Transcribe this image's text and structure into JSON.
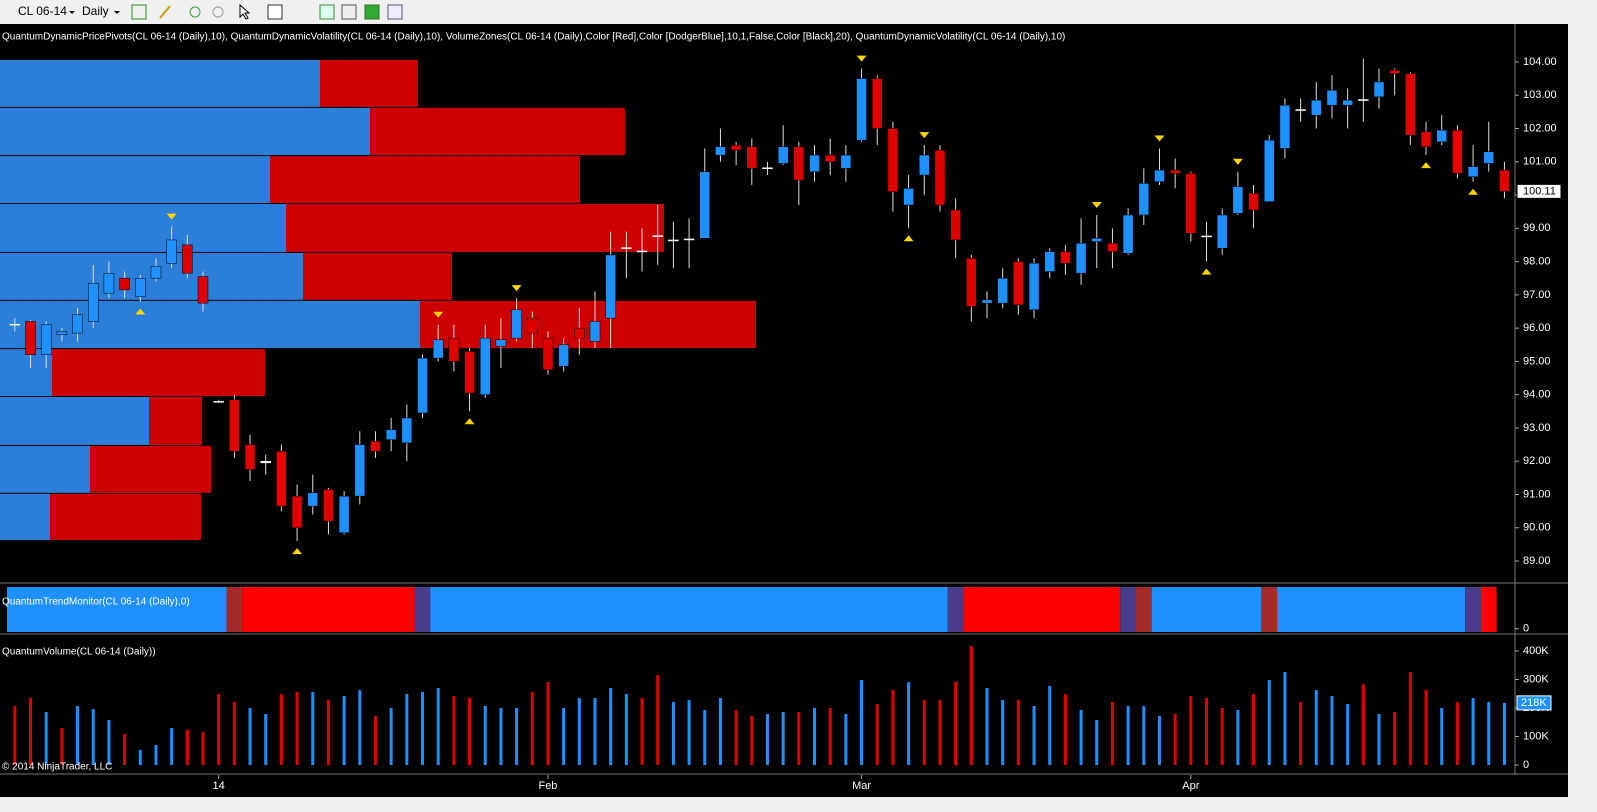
{
  "toolbar": {
    "instrument": "CL 06-14",
    "period": "Daily"
  },
  "copyright": "© 2014 NinjaTrader, LLC",
  "chart_data": [
    {
      "type": "candlestick",
      "title": "QuantumDynamicPricePivots(CL 06-14 (Daily),10), QuantumDynamicVolatility(CL 06-14 (Daily),10), VolumeZones(CL 06-14 (Daily),Color [Red],Color [DodgerBlue],10,1,False,Color [Black],20), QuantumDynamicVolatility(CL 06-14 (Daily),10)",
      "categories": [
        null,
        null,
        null,
        null,
        null,
        null,
        null,
        null,
        null,
        null,
        null,
        null,
        null,
        "14",
        null,
        null,
        null,
        null,
        null,
        null,
        null,
        null,
        null,
        null,
        null,
        null,
        null,
        null,
        null,
        null,
        null,
        null,
        null,
        null,
        "Feb",
        null,
        null,
        null,
        null,
        null,
        null,
        null,
        null,
        null,
        null,
        null,
        null,
        null,
        null,
        null,
        null,
        null,
        null,
        null,
        "Mar",
        null,
        null,
        null,
        null,
        null,
        null,
        null,
        null,
        null,
        null,
        null,
        null,
        null,
        null,
        null,
        null,
        null,
        null,
        null,
        null,
        "Apr",
        null,
        null,
        null,
        null,
        null,
        null,
        null,
        null,
        null,
        null,
        null,
        null,
        null,
        null,
        null,
        null,
        null,
        null,
        null,
        null
      ],
      "open": [
        96.1,
        96.2,
        95.2,
        95.8,
        95.85,
        96.2,
        97.05,
        97.5,
        96.95,
        97.5,
        97.95,
        98.5,
        97.55,
        93.8,
        93.85,
        92.5,
        92.0,
        92.3,
        90.95,
        90.65,
        91.15,
        89.85,
        90.95,
        92.6,
        92.65,
        92.55,
        93.45,
        95.1,
        95.7,
        95.3,
        94.0,
        95.45,
        95.7,
        96.3,
        95.7,
        94.85,
        96.0,
        95.6,
        96.3,
        98.4,
        98.3,
        98.75,
        98.65,
        98.65,
        98.7,
        101.2,
        101.5,
        101.45,
        100.8,
        100.95,
        101.45,
        100.7,
        101.2,
        100.8,
        101.65,
        103.5,
        102.0,
        99.7,
        100.6,
        101.35,
        99.55,
        98.1,
        96.75,
        96.75,
        98.0,
        96.55,
        97.7,
        98.3,
        97.65,
        98.6,
        98.55,
        98.25,
        99.4,
        100.4,
        100.75,
        100.65,
        98.75,
        98.4,
        99.45,
        100.05,
        99.8,
        101.4,
        102.55,
        102.4,
        102.7,
        102.7,
        102.85,
        102.95,
        103.75,
        103.65,
        101.9,
        101.6,
        101.95,
        100.55,
        100.95,
        100.75
      ],
      "high": [
        96.3,
        96.25,
        96.2,
        96.0,
        96.6,
        97.9,
        98.0,
        97.7,
        97.6,
        98.1,
        99.05,
        98.8,
        97.7,
        93.85,
        94.0,
        92.8,
        92.2,
        92.5,
        91.3,
        91.6,
        91.2,
        91.1,
        92.9,
        92.9,
        93.3,
        93.7,
        95.2,
        96.1,
        96.1,
        95.4,
        96.1,
        96.3,
        96.9,
        96.5,
        95.9,
        95.7,
        96.6,
        97.1,
        98.9,
        98.9,
        99.0,
        99.7,
        99.2,
        99.3,
        101.4,
        102.0,
        101.6,
        101.7,
        101.0,
        102.1,
        101.6,
        101.5,
        101.7,
        101.5,
        103.8,
        103.6,
        102.2,
        100.6,
        101.5,
        101.5,
        99.9,
        98.2,
        97.1,
        97.8,
        98.1,
        98.1,
        98.4,
        98.5,
        99.3,
        99.4,
        99.0,
        99.6,
        100.8,
        101.4,
        101.1,
        100.7,
        99.2,
        99.6,
        100.7,
        100.3,
        101.8,
        102.9,
        102.9,
        103.4,
        103.6,
        103.2,
        104.1,
        103.8,
        103.8,
        103.7,
        102.2,
        102.4,
        102.1,
        101.5,
        102.2,
        101.0
      ],
      "low": [
        95.9,
        94.8,
        94.8,
        95.6,
        95.6,
        96.0,
        96.9,
        96.9,
        96.8,
        97.4,
        97.8,
        97.5,
        96.5,
        93.75,
        92.1,
        91.4,
        91.6,
        90.5,
        89.6,
        90.4,
        89.8,
        89.8,
        90.7,
        92.1,
        92.3,
        92.0,
        93.3,
        95.0,
        94.7,
        93.5,
        93.9,
        94.8,
        95.6,
        95.4,
        94.6,
        94.7,
        95.2,
        95.4,
        95.4,
        97.5,
        97.7,
        97.9,
        97.8,
        97.8,
        98.7,
        101.0,
        100.9,
        100.3,
        100.6,
        100.9,
        99.7,
        100.4,
        100.6,
        100.4,
        101.6,
        101.5,
        99.5,
        99.0,
        100.0,
        99.5,
        98.1,
        96.2,
        96.3,
        96.6,
        96.4,
        96.3,
        97.5,
        97.6,
        97.3,
        97.8,
        97.8,
        98.2,
        99.1,
        100.3,
        100.2,
        98.6,
        98.0,
        98.2,
        99.4,
        99.0,
        99.8,
        101.1,
        102.2,
        102.0,
        102.3,
        102.0,
        102.2,
        102.6,
        103.0,
        101.5,
        101.2,
        101.5,
        100.5,
        100.4,
        100.7,
        99.9
      ],
      "close": [
        96.12,
        95.2,
        96.1,
        95.9,
        96.4,
        97.35,
        97.65,
        97.15,
        97.5,
        97.85,
        98.65,
        97.65,
        96.75,
        93.78,
        92.3,
        91.75,
        91.95,
        90.65,
        90.0,
        91.05,
        90.2,
        90.95,
        92.5,
        92.3,
        92.95,
        93.3,
        95.1,
        95.65,
        95.0,
        94.05,
        95.7,
        95.65,
        96.55,
        95.85,
        94.75,
        95.5,
        95.7,
        96.2,
        98.2,
        98.42,
        98.32,
        98.78,
        98.62,
        98.68,
        100.7,
        101.45,
        101.35,
        100.8,
        100.82,
        101.45,
        100.45,
        101.2,
        101.0,
        101.2,
        103.5,
        102.0,
        100.1,
        100.2,
        101.2,
        99.7,
        98.65,
        96.65,
        96.85,
        97.5,
        96.7,
        97.95,
        98.3,
        97.95,
        98.55,
        98.7,
        98.3,
        99.4,
        100.35,
        100.75,
        100.65,
        98.85,
        98.77,
        99.4,
        100.25,
        99.55,
        101.65,
        102.7,
        102.57,
        102.85,
        103.15,
        102.85,
        102.87,
        103.4,
        103.65,
        101.8,
        101.45,
        101.95,
        100.65,
        100.85,
        101.3,
        100.11
      ],
      "up_color": "#1e90ff",
      "down_color": "#e00000",
      "pivot_highs": [
        10,
        27,
        32,
        54,
        58,
        69,
        73,
        78
      ],
      "pivot_lows": [
        8,
        18,
        29,
        57,
        76,
        90,
        93
      ],
      "pivot_color": "#ffd700",
      "volume_zones": [
        {
          "high": 104.06,
          "low": 102.62,
          "up": 320,
          "down": 98
        },
        {
          "high": 102.62,
          "low": 101.17,
          "up": 370,
          "down": 255
        },
        {
          "high": 101.17,
          "low": 99.73,
          "up": 270,
          "down": 310
        },
        {
          "high": 99.73,
          "low": 98.26,
          "up": 286,
          "down": 378
        },
        {
          "high": 98.26,
          "low": 96.82,
          "up": 303,
          "down": 149
        },
        {
          "high": 96.82,
          "low": 95.37,
          "up": 420,
          "down": 336
        },
        {
          "high": 95.37,
          "low": 93.93,
          "up": 52,
          "down": 213
        },
        {
          "high": 93.93,
          "low": 92.46,
          "up": 149,
          "down": 53
        },
        {
          "high": 92.46,
          "low": 91.02,
          "up": 90,
          "down": 121
        },
        {
          "high": 91.02,
          "low": 89.6,
          "up": 50,
          "down": 151
        }
      ],
      "zone_up_color": "#2b7fd8",
      "zone_down_color": "#cc0000",
      "ylim": [
        88.37,
        105.02
      ],
      "yticks": [
        {
          "value": 89,
          "label": "89.00"
        },
        {
          "value": 90,
          "label": "90.00"
        },
        {
          "value": 91,
          "label": "91.00"
        },
        {
          "value": 92,
          "label": "92.00"
        },
        {
          "value": 93,
          "label": "93.00"
        },
        {
          "value": 94,
          "label": "94.00"
        },
        {
          "value": 95,
          "label": "95.00"
        },
        {
          "value": 96,
          "label": "96.00"
        },
        {
          "value": 97,
          "label": "97.00"
        },
        {
          "value": 98,
          "label": "98.00"
        },
        {
          "value": 99,
          "label": "99.00"
        },
        {
          "value": 100,
          "label": "100.00"
        },
        {
          "value": 101,
          "label": "101.00"
        },
        {
          "value": 102,
          "label": "102.00"
        },
        {
          "value": 103,
          "label": "103.00"
        },
        {
          "value": 104,
          "label": "104.00"
        }
      ]
    },
    {
      "type": "band",
      "title": "QuantumTrendMonitor(CL 06-14 (Daily),0)",
      "segments": [
        {
          "from": 0,
          "to": 13,
          "color": "#1e90ff"
        },
        {
          "from": 14,
          "to": 14,
          "color": "#a52a2a"
        },
        {
          "from": 15,
          "to": 25,
          "color": "#ff0000"
        },
        {
          "from": 26,
          "to": 26,
          "color": "#483d8b"
        },
        {
          "from": 27,
          "to": 59,
          "color": "#1e90ff"
        },
        {
          "from": 60,
          "to": 60,
          "color": "#483d8b"
        },
        {
          "from": 61,
          "to": 70,
          "color": "#ff0000"
        },
        {
          "from": 71,
          "to": 71,
          "color": "#483d8b"
        },
        {
          "from": 72,
          "to": 72,
          "color": "#a52a2a"
        },
        {
          "from": 73,
          "to": 79,
          "color": "#1e90ff"
        },
        {
          "from": 80,
          "to": 80,
          "color": "#a52a2a"
        },
        {
          "from": 81,
          "to": 92,
          "color": "#1e90ff"
        },
        {
          "from": 93,
          "to": 93,
          "color": "#483d8b"
        },
        {
          "from": 94,
          "to": 94,
          "color": "#ff0000"
        }
      ],
      "ylim": [
        -0.1,
        1
      ],
      "yticks": [
        0
      ]
    },
    {
      "type": "volume",
      "title": "QuantumVolume(CL 06-14 (Daily))",
      "values": [
        207000,
        235000,
        186000,
        130000,
        207000,
        196000,
        158000,
        109000,
        53000,
        70000,
        130000,
        123000,
        116000,
        249000,
        221000,
        200000,
        179000,
        249000,
        256000,
        256000,
        228000,
        242000,
        263000,
        172000,
        200000,
        249000,
        256000,
        270000,
        242000,
        235000,
        207000,
        200000,
        200000,
        256000,
        291000,
        200000,
        235000,
        235000,
        270000,
        249000,
        235000,
        316000,
        221000,
        228000,
        193000,
        235000,
        193000,
        172000,
        179000,
        186000,
        186000,
        200000,
        200000,
        179000,
        298000,
        214000,
        263000,
        291000,
        228000,
        228000,
        291000,
        418000,
        270000,
        228000,
        228000,
        207000,
        277000,
        249000,
        193000,
        158000,
        221000,
        207000,
        207000,
        172000,
        179000,
        242000,
        235000,
        200000,
        193000,
        249000,
        298000,
        326000,
        221000,
        263000,
        242000,
        214000,
        284000,
        179000,
        186000,
        326000,
        263000,
        200000,
        221000,
        235000,
        221000,
        218000
      ],
      "sides": "RRBRBBBRBBBRRRRBBRRBRBBRBBBBRRBBBRRBBBBBRRBBBBRRBBRBRBBRRBRRRRBBRBBRBBRBBBRRRRBRBBRBBBRBRRRBRBBB",
      "colors": {
        "R": "#e00000",
        "B": "#1e90ff"
      },
      "last_label": "218K",
      "ylim": [
        -28000,
        452600
      ],
      "yticks": [
        0,
        {
          "value": 100000,
          "label": "100K"
        },
        {
          "value": 200000,
          "label": "200K"
        },
        {
          "value": 300000,
          "label": "300K"
        },
        {
          "value": 400000,
          "label": "400K"
        }
      ]
    }
  ]
}
